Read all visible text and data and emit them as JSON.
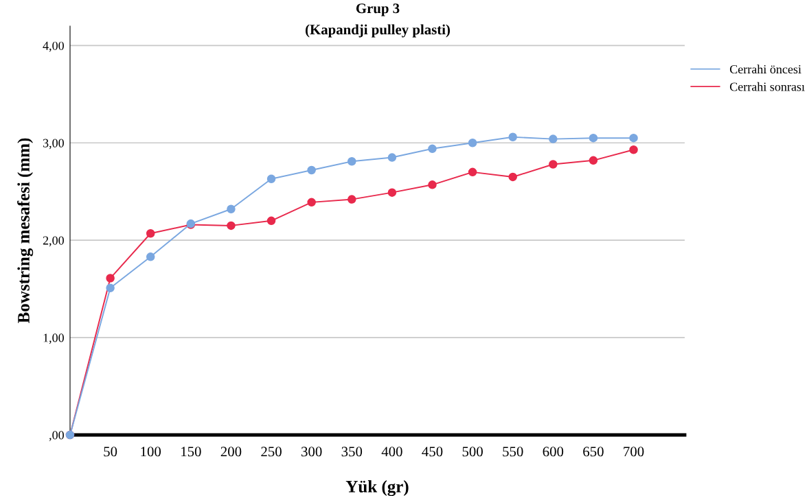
{
  "chart_data": {
    "type": "line",
    "title": "Grup 3",
    "subtitle": "(Kapandji pulley plasti)",
    "xlabel": "Yük (gr)",
    "ylabel": "Bowstring mesafesi (mm)",
    "categories": [
      null,
      "50",
      "100",
      "150",
      "200",
      "250",
      "300",
      "350",
      "400",
      "450",
      "500",
      "550",
      "600",
      "650",
      "700"
    ],
    "series": [
      {
        "name": "Cerrahi öncesi",
        "color": "#7aa7e0",
        "values": [
          0,
          1.51,
          1.83,
          2.17,
          2.32,
          2.63,
          2.72,
          2.81,
          2.85,
          2.94,
          3.0,
          3.06,
          3.04,
          3.05,
          3.05
        ]
      },
      {
        "name": "Cerrahi sonrası",
        "color": "#e8294c",
        "values": [
          0,
          1.61,
          2.07,
          2.16,
          2.15,
          2.2,
          2.39,
          2.42,
          2.49,
          2.57,
          2.7,
          2.65,
          2.78,
          2.82,
          2.93
        ]
      }
    ],
    "ylim": [
      0,
      4.2
    ],
    "yticks": [
      {
        "value": 0,
        "label": ",00"
      },
      {
        "value": 1,
        "label": "1,00"
      },
      {
        "value": 2,
        "label": "2,00"
      },
      {
        "value": 3,
        "label": "3,00"
      },
      {
        "value": 4,
        "label": "4,00"
      }
    ],
    "grid": "y",
    "legend": "top right",
    "marker": "circle",
    "line_style": "solid"
  }
}
